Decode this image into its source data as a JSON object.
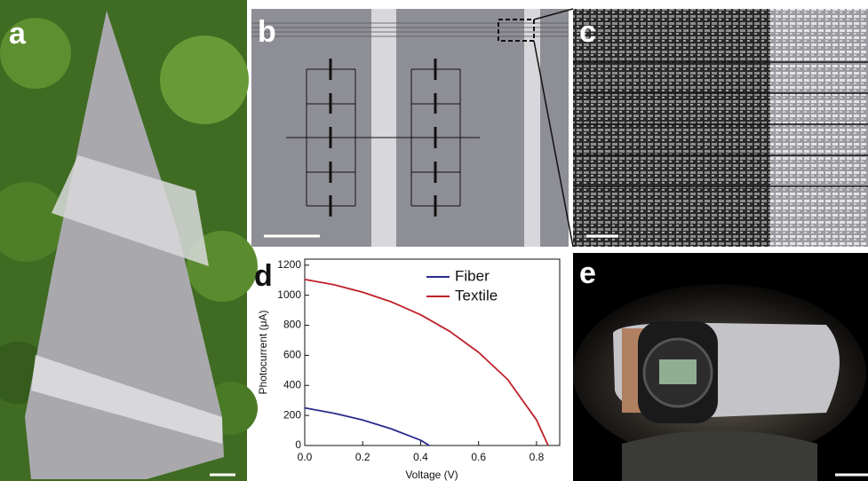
{
  "panels": [
    {
      "label": "a"
    },
    {
      "label": "b"
    },
    {
      "label": "c"
    },
    {
      "label": "d"
    },
    {
      "label": "e"
    }
  ],
  "chart_data": {
    "type": "line",
    "xlabel": "Voltage (V)",
    "ylabel": "Photocurrent (μA)",
    "xlim": [
      0,
      0.88
    ],
    "ylim": [
      0,
      1240
    ],
    "xticks": [
      {
        "value": 0,
        "label": "0.0"
      },
      {
        "value": 0.2,
        "label": "0.2"
      },
      {
        "value": 0.4,
        "label": "0.4"
      },
      {
        "value": 0.6,
        "label": "0.6"
      },
      {
        "value": 0.8,
        "label": "0.8"
      }
    ],
    "yticks": [
      0,
      200,
      400,
      600,
      800,
      1000,
      1200
    ],
    "legend": "upper right",
    "grid": false,
    "series": [
      {
        "name": "Fiber",
        "color": "#2b2b8f",
        "x": [
          0,
          0.1,
          0.2,
          0.3,
          0.4,
          0.43
        ],
        "values": [
          250,
          215,
          170,
          110,
          35,
          0
        ]
      },
      {
        "name": "Textile",
        "color": "#c0202a",
        "x": [
          0,
          0.1,
          0.2,
          0.3,
          0.4,
          0.5,
          0.6,
          0.7,
          0.8,
          0.84
        ],
        "values": [
          1105,
          1070,
          1020,
          955,
          870,
          760,
          620,
          440,
          170,
          0
        ]
      }
    ]
  }
}
